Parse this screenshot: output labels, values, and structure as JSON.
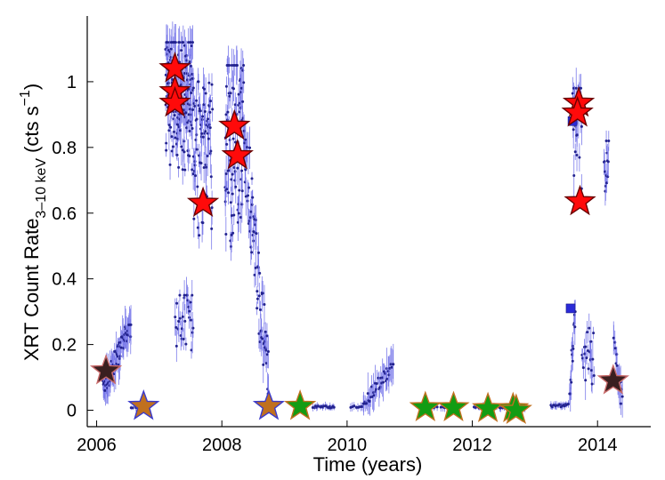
{
  "chart_data": {
    "type": "scatter",
    "xlabel": "Time (years)",
    "ylabel": {
      "main": "XRT Count Rate",
      "subscript": "3–10 keV",
      "unit_open": "(cts s",
      "unit_exp": "−1",
      "unit_close": ")"
    },
    "xlim": [
      2005.85,
      2014.85
    ],
    "ylim": [
      -0.05,
      1.2
    ],
    "xticks": [
      2006,
      2008,
      2010,
      2012,
      2014
    ],
    "xtick_labels": [
      "2006",
      "2008",
      "2010",
      "2012",
      "2014"
    ],
    "yticks": [
      0,
      0.2,
      0.4,
      0.6,
      0.8,
      1.0
    ],
    "ytick_labels": [
      "0",
      "0.2",
      "0.4",
      "0.6",
      "0.8",
      "1"
    ],
    "grid": false,
    "lightcurve_segments": [
      {
        "x": [
          2006.1,
          2006.55
        ],
        "y": [
          0.06,
          0.26
        ],
        "n": 70,
        "shape": "rise"
      },
      {
        "x": [
          2006.55,
          2006.75
        ],
        "y": [
          0.0,
          0.02
        ],
        "n": 8,
        "shape": "flat"
      },
      {
        "x": [
          2007.1,
          2007.55
        ],
        "y": [
          0.55,
          1.12
        ],
        "n": 170,
        "shape": "high"
      },
      {
        "x": [
          2007.25,
          2007.55
        ],
        "y": [
          0.08,
          0.35
        ],
        "n": 30,
        "shape": "dip"
      },
      {
        "x": [
          2007.55,
          2007.85
        ],
        "y": [
          0.25,
          1.0
        ],
        "n": 70,
        "shape": "high"
      },
      {
        "x": [
          2008.05,
          2008.35
        ],
        "y": [
          0.2,
          1.05
        ],
        "n": 90,
        "shape": "high"
      },
      {
        "x": [
          2008.35,
          2008.75
        ],
        "y": [
          0.05,
          0.85
        ],
        "n": 70,
        "shape": "decay"
      },
      {
        "x": [
          2009.45,
          2009.8
        ],
        "y": [
          0.0,
          0.02
        ],
        "n": 20,
        "shape": "flat"
      },
      {
        "x": [
          2010.05,
          2010.25
        ],
        "y": [
          0.0,
          0.02
        ],
        "n": 8,
        "shape": "flat"
      },
      {
        "x": [
          2010.25,
          2010.75
        ],
        "y": [
          0.02,
          0.14
        ],
        "n": 40,
        "shape": "rise"
      },
      {
        "x": [
          2011.2,
          2011.6
        ],
        "y": [
          0.0,
          0.02
        ],
        "n": 12,
        "shape": "flat"
      },
      {
        "x": [
          2012.0,
          2012.85
        ],
        "y": [
          0.0,
          0.02
        ],
        "n": 25,
        "shape": "flat"
      },
      {
        "x": [
          2013.25,
          2013.55
        ],
        "y": [
          0.0,
          0.03
        ],
        "n": 20,
        "shape": "flat"
      },
      {
        "x": [
          2013.55,
          2013.65
        ],
        "y": [
          0.05,
          0.3
        ],
        "n": 15,
        "shape": "rise"
      },
      {
        "x": [
          2013.6,
          2013.75
        ],
        "y": [
          0.55,
          0.98
        ],
        "n": 35,
        "shape": "high"
      },
      {
        "x": [
          2013.75,
          2013.95
        ],
        "y": [
          0.0,
          0.25
        ],
        "n": 20,
        "shape": "dip"
      },
      {
        "x": [
          2014.1,
          2014.18
        ],
        "y": [
          0.5,
          0.82
        ],
        "n": 14,
        "shape": "high"
      },
      {
        "x": [
          2014.25,
          2014.4
        ],
        "y": [
          0.02,
          0.22
        ],
        "n": 15,
        "shape": "decay"
      }
    ],
    "squares": {
      "color": "#2a2ad8",
      "points": [
        {
          "x": 2013.6,
          "y": 0.88
        },
        {
          "x": 2013.57,
          "y": 0.31
        }
      ]
    },
    "stars": [
      {
        "x": 2006.15,
        "y": 0.12,
        "fill": "#3a1f1f",
        "stroke": "#c86a6a"
      },
      {
        "x": 2006.75,
        "y": 0.012,
        "fill": "#c0701f",
        "stroke": "#3a3acc"
      },
      {
        "x": 2007.25,
        "y": 1.04,
        "fill": "#ff0a0a",
        "stroke": "#6a0000"
      },
      {
        "x": 2007.25,
        "y": 0.97,
        "fill": "#ff0a0a",
        "stroke": "#6a0000"
      },
      {
        "x": 2007.25,
        "y": 0.935,
        "fill": "#ff0a0a",
        "stroke": "#6a0000"
      },
      {
        "x": 2007.7,
        "y": 0.63,
        "fill": "#ff0a0a",
        "stroke": "#6a0000"
      },
      {
        "x": 2008.2,
        "y": 0.865,
        "fill": "#ff0a0a",
        "stroke": "#6a0000"
      },
      {
        "x": 2008.25,
        "y": 0.775,
        "fill": "#ff0a0a",
        "stroke": "#6a0000"
      },
      {
        "x": 2008.75,
        "y": 0.012,
        "fill": "#c0701f",
        "stroke": "#3a3acc"
      },
      {
        "x": 2009.25,
        "y": 0.012,
        "fill": "#139c13",
        "stroke": "#c0701f"
      },
      {
        "x": 2011.25,
        "y": 0.008,
        "fill": "#139c13",
        "stroke": "#c0701f"
      },
      {
        "x": 2011.7,
        "y": 0.008,
        "fill": "#139c13",
        "stroke": "#c0701f"
      },
      {
        "x": 2012.25,
        "y": 0.005,
        "fill": "#139c13",
        "stroke": "#c0701f"
      },
      {
        "x": 2012.65,
        "y": 0.005,
        "fill": "#139c13",
        "stroke": "#c0701f"
      },
      {
        "x": 2012.7,
        "y": 0.0,
        "fill": "#139c13",
        "stroke": "#c0701f"
      },
      {
        "x": 2013.7,
        "y": 0.935,
        "fill": "#ff0a0a",
        "stroke": "#6a0000"
      },
      {
        "x": 2013.68,
        "y": 0.905,
        "fill": "#ff0a0a",
        "stroke": "#6a0000"
      },
      {
        "x": 2013.72,
        "y": 0.635,
        "fill": "#ff0a0a",
        "stroke": "#6a0000"
      },
      {
        "x": 2014.25,
        "y": 0.09,
        "fill": "#3a1f1f",
        "stroke": "#c86a6a"
      }
    ],
    "colors": {
      "points": "#23238f",
      "errorbars": "#7b7bea",
      "axis": "#000000"
    }
  }
}
